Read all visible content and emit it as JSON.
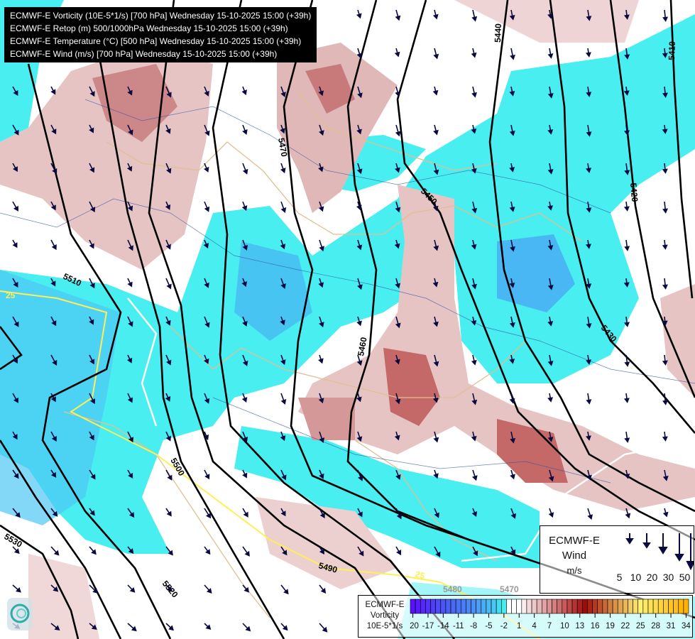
{
  "titles": [
    "ECMWF-E Vorticity (10E-5*1/s) [700 hPa] Wednesday 15-10-2025 15:00 (+39h)",
    "ECMWF-E Retop (m) 500/1000hPa Wednesday 15-10-2025 15:00 (+39h)",
    "ECMWF-E Temperature (°C) [500 hPa] Wednesday 15-10-2025 15:00 (+39h)",
    "ECMWF-E Wind (m/s) [700 hPa] Wednesday 15-10-2025 15:00 (+39h)"
  ],
  "contour_labels": [
    "5440",
    "5410",
    "5470",
    "5450",
    "5420",
    "5510",
    "5460",
    "5430",
    "5500",
    "5530",
    "5490",
    "5520",
    "5480",
    "5470"
  ],
  "temperature_labels": [
    "25",
    "25"
  ],
  "wind_legend": {
    "line1": "ECMWF-E",
    "line2": "Wind",
    "unit": "m/s",
    "speeds": [
      "5",
      "10",
      "20",
      "30",
      "50"
    ]
  },
  "vorticity_legend": {
    "line1": "ECMWF-E",
    "line2": "Vorticity",
    "unit": "10E-5*1/s",
    "min": -20,
    "max": 34,
    "ticks": [
      "-20",
      "-17",
      "-14",
      "-11",
      "-8",
      "-5",
      "-2",
      "1",
      "4",
      "7",
      "10",
      "13",
      "16",
      "19",
      "22",
      "25",
      "28",
      "31",
      "34"
    ],
    "color_stops": [
      {
        "v": -20,
        "c": "#5a10ff"
      },
      {
        "v": -14,
        "c": "#4a55f5"
      },
      {
        "v": -8,
        "c": "#4a90f5"
      },
      {
        "v": -4,
        "c": "#48c8f5"
      },
      {
        "v": -2,
        "c": "#40f0f0"
      },
      {
        "v": -1,
        "c": "#ffffff"
      },
      {
        "v": 1,
        "c": "#ffffff"
      },
      {
        "v": 4,
        "c": "#ecc8c8"
      },
      {
        "v": 10,
        "c": "#c85a5a"
      },
      {
        "v": 14,
        "c": "#a00c0c"
      },
      {
        "v": 19,
        "c": "#d08040"
      },
      {
        "v": 25,
        "c": "#fff070"
      },
      {
        "v": 34,
        "c": "#ffb000"
      }
    ]
  },
  "colors": {
    "negative_vorticity": "#40f0f0",
    "positive_vorticity": "#d9a0a0",
    "contour": "#000000",
    "temperature_25": "#ffee55",
    "wind_arrow": "#0a0a40",
    "border": "#e0c090"
  }
}
